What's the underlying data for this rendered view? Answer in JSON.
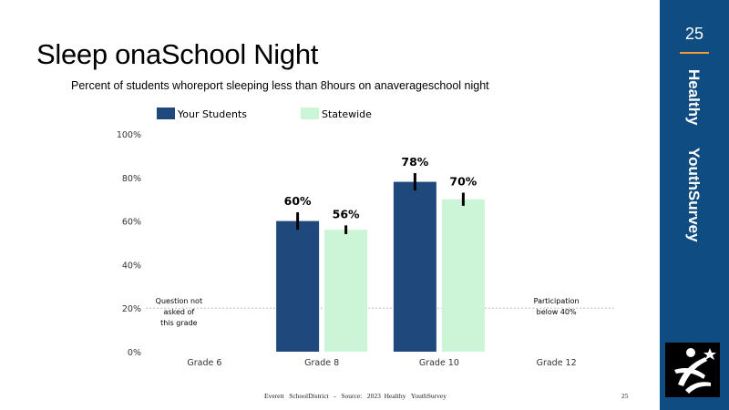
{
  "slide": {
    "title": "Sleep onaSchool  Night",
    "subtitle": "Percent of students whoreport  sleeping less than 8hours  on anaverageschool  night",
    "footer": "Everett   SchoolDistrict   -   Source:   2023  Healthy   YouthSurvey",
    "footer_page": "25"
  },
  "sidebar": {
    "page_number": "25",
    "label_1": "Healthy",
    "label_2": "YouthSurvey",
    "color": "#0f4c81",
    "accent": "#f0a030"
  },
  "chart_data": {
    "type": "bar",
    "categories": [
      "Grade 6",
      "Grade 8",
      "Grade 10",
      "Grade 12"
    ],
    "series": [
      {
        "name": "Your Students",
        "color": "#1f497d",
        "values": [
          null,
          60,
          78,
          null
        ],
        "labels": [
          "",
          "60%",
          "78%",
          ""
        ],
        "err": [
          null,
          4,
          4,
          null
        ]
      },
      {
        "name": "Statewide",
        "color": "#ccf5d8",
        "values": [
          null,
          56,
          70,
          null
        ],
        "labels": [
          "",
          "56%",
          "70%",
          ""
        ],
        "err": [
          null,
          2,
          3,
          null
        ]
      }
    ],
    "yticks": [
      {
        "value": 0,
        "label": "0%"
      },
      {
        "value": 20,
        "label": "20%"
      },
      {
        "value": 40,
        "label": "40%"
      },
      {
        "value": 60,
        "label": "60%"
      },
      {
        "value": 80,
        "label": "80%"
      },
      {
        "value": 100,
        "label": "100%"
      }
    ],
    "ylim": [
      0,
      100
    ],
    "reference_line": 20,
    "legend_position": "top-left",
    "annotations": [
      {
        "category": "Grade 6",
        "lines": [
          "Question not",
          "asked of",
          "this grade"
        ]
      },
      {
        "category": "Grade 12",
        "lines": [
          "Participation",
          "below 40%"
        ]
      }
    ]
  }
}
